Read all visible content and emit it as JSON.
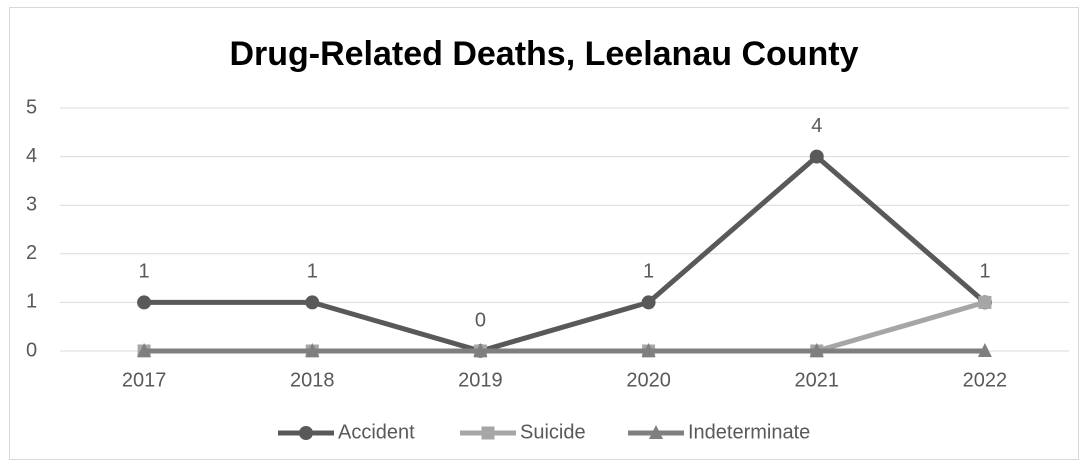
{
  "chart_data": {
    "type": "line",
    "title": "Drug-Related Deaths, Leelanau County",
    "categories": [
      "2017",
      "2018",
      "2019",
      "2020",
      "2021",
      "2022"
    ],
    "series": [
      {
        "name": "Accident",
        "color": "#595959",
        "marker": "circle",
        "data_labels": true,
        "values": [
          1,
          1,
          0,
          1,
          4,
          1
        ]
      },
      {
        "name": "Suicide",
        "color": "#a6a6a6",
        "marker": "square",
        "values": [
          0,
          0,
          0,
          0,
          0,
          1
        ]
      },
      {
        "name": "Indeterminate",
        "color": "#7f7f7f",
        "marker": "triangle",
        "values": [
          0,
          0,
          0,
          0,
          0,
          0
        ]
      }
    ],
    "ylim": [
      0,
      5
    ],
    "yticks": [
      0,
      1,
      2,
      3,
      4,
      5
    ],
    "grid": true,
    "legend": "bottom"
  }
}
